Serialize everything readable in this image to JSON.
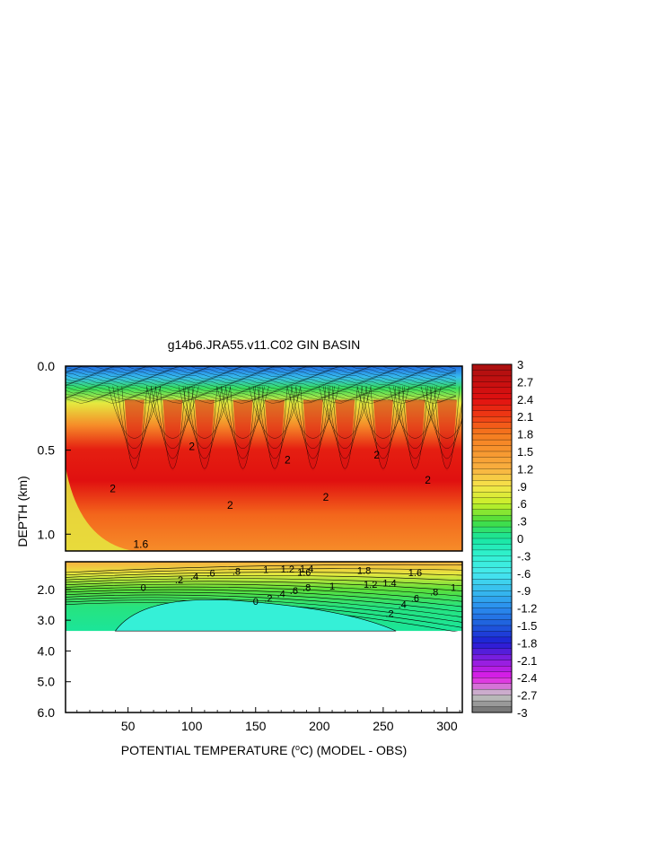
{
  "chart_data": {
    "type": "heatmap",
    "title": "g14b6.JRA55.v11.C02 GIN BASIN",
    "xlabel": "POTENTIAL TEMPERATURE (°C) (MODEL - OBS)",
    "xlabel_parts": {
      "before": "POTENTIAL TEMPERATURE (",
      "sup": "o",
      "after": "C) (MODEL - OBS)"
    },
    "ylabel": "DEPTH (km)",
    "x_ticks": [
      "50",
      "100",
      "150",
      "200",
      "250",
      "300"
    ],
    "x_tick_values": [
      50,
      100,
      150,
      200,
      250,
      300
    ],
    "xlim": [
      1,
      312
    ],
    "upper_panel": {
      "ylim": [
        0.0,
        1.1
      ],
      "y_ticks": [
        "0.0",
        "0.5",
        "1.0"
      ],
      "y_tick_values": [
        0.0,
        0.5,
        1.0
      ]
    },
    "lower_panel": {
      "ylim": [
        1.1,
        6.0
      ],
      "y_ticks": [
        "2.0",
        "3.0",
        "4.0",
        "5.0",
        "6.0"
      ],
      "y_tick_values": [
        2.0,
        3.0,
        4.0,
        5.0,
        6.0
      ],
      "data_bottom_km": 3.35
    },
    "colorbar": {
      "labels": [
        "3",
        "2.7",
        "2.4",
        "2.1",
        "1.8",
        "1.5",
        "1.2",
        ".9",
        ".6",
        ".3",
        "0",
        "-.3",
        "-.6",
        "-.9",
        "-1.2",
        "-1.5",
        "-1.8",
        "-2.1",
        "-2.4",
        "-2.7",
        "-3"
      ],
      "label_values": [
        3,
        2.7,
        2.4,
        2.1,
        1.8,
        1.5,
        1.2,
        0.9,
        0.6,
        0.3,
        0,
        -0.3,
        -0.6,
        -0.9,
        -1.2,
        -1.5,
        -1.8,
        -2.1,
        -2.4,
        -2.7,
        -3
      ],
      "range": [
        -3,
        3
      ],
      "color_stops": [
        {
          "v": 3.0,
          "color": "#a81010"
        },
        {
          "v": 2.4,
          "color": "#e01010"
        },
        {
          "v": 2.1,
          "color": "#f03c14"
        },
        {
          "v": 1.8,
          "color": "#f57a1e"
        },
        {
          "v": 1.2,
          "color": "#f8b040"
        },
        {
          "v": 0.9,
          "color": "#f5e64a"
        },
        {
          "v": 0.6,
          "color": "#c6f028"
        },
        {
          "v": 0.3,
          "color": "#46dc3c"
        },
        {
          "v": 0.0,
          "color": "#18e6a0"
        },
        {
          "v": -0.3,
          "color": "#32f2d2"
        },
        {
          "v": -0.6,
          "color": "#46e8ee"
        },
        {
          "v": -0.9,
          "color": "#36bcee"
        },
        {
          "v": -1.2,
          "color": "#2a8cee"
        },
        {
          "v": -1.5,
          "color": "#1e5cdc"
        },
        {
          "v": -1.8,
          "color": "#1e1ed4"
        },
        {
          "v": -2.1,
          "color": "#8a1ee0"
        },
        {
          "v": -2.4,
          "color": "#e21ee6"
        },
        {
          "v": -2.7,
          "color": "#c8c8c8"
        },
        {
          "v": -3.0,
          "color": "#6a6a6a"
        }
      ]
    },
    "contour_labels_upper": [
      "2",
      "2",
      "2",
      "2",
      "2",
      "2",
      "2",
      "1.6"
    ],
    "contour_labels_lower": [
      "0",
      ".2",
      ".4",
      ".6",
      ".8",
      "1",
      "1.2",
      "1.4",
      "1.6",
      "1.8",
      "1.6",
      "1.4",
      "1.2",
      "1",
      ".8",
      ".6",
      ".4",
      ".2",
      "0",
      ".2",
      ".4",
      ".6",
      ".8",
      "1"
    ],
    "grid": false,
    "legend_position": "right"
  }
}
